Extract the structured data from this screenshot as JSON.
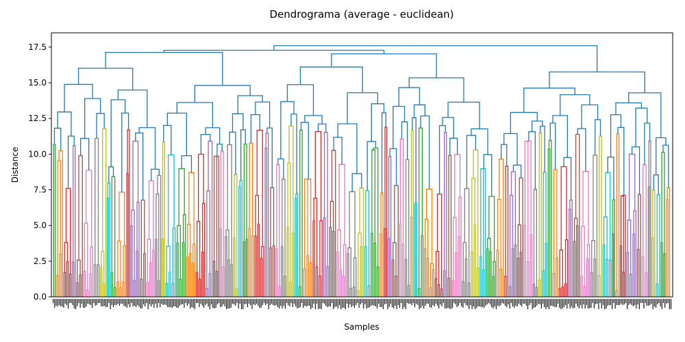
{
  "chart_data": {
    "type": "dendrogram",
    "title": "Dendrograma (average - euclidean)",
    "xlabel": "Samples",
    "ylabel": "Distance",
    "ylim": [
      0,
      18.5
    ],
    "yticks": [
      0.0,
      2.5,
      5.0,
      7.5,
      10.0,
      12.5,
      15.0,
      17.5
    ],
    "ytick_labels": [
      "0.0",
      "2.5",
      "5.0",
      "7.5",
      "10.0",
      "12.5",
      "15.0",
      "17.5"
    ],
    "root_height": 17.6,
    "above_threshold_color": "#1f77b4",
    "cluster_colors": [
      "#2ca02c",
      "#ff7f0e",
      "#d62728",
      "#9467bd",
      "#8c564b",
      "#e377c2",
      "#7f7f7f",
      "#bcbd22",
      "#17becf"
    ],
    "leaf_labels_legible": false,
    "grid": false,
    "legend": "none"
  }
}
